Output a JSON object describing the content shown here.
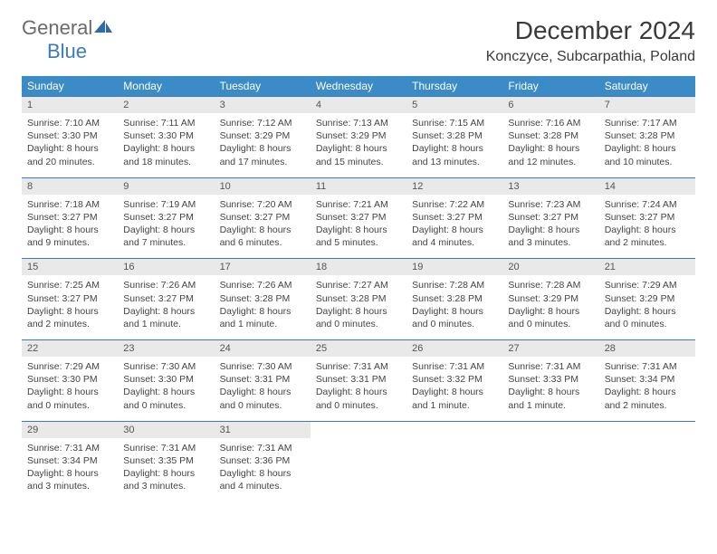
{
  "logo": {
    "general": "General",
    "blue": "Blue"
  },
  "title": "December 2024",
  "location": "Konczyce, Subcarpathia, Poland",
  "colors": {
    "header_bg": "#3b8bc7",
    "header_text": "#ffffff",
    "daynum_bg": "#e9e9e9",
    "border": "#3b7bbf",
    "logo_gray": "#6b6b6b",
    "logo_blue": "#3b7bbf"
  },
  "day_headers": [
    "Sunday",
    "Monday",
    "Tuesday",
    "Wednesday",
    "Thursday",
    "Friday",
    "Saturday"
  ],
  "weeks": [
    [
      {
        "num": "1",
        "sunrise": "Sunrise: 7:10 AM",
        "sunset": "Sunset: 3:30 PM",
        "day1": "Daylight: 8 hours",
        "day2": "and 20 minutes."
      },
      {
        "num": "2",
        "sunrise": "Sunrise: 7:11 AM",
        "sunset": "Sunset: 3:30 PM",
        "day1": "Daylight: 8 hours",
        "day2": "and 18 minutes."
      },
      {
        "num": "3",
        "sunrise": "Sunrise: 7:12 AM",
        "sunset": "Sunset: 3:29 PM",
        "day1": "Daylight: 8 hours",
        "day2": "and 17 minutes."
      },
      {
        "num": "4",
        "sunrise": "Sunrise: 7:13 AM",
        "sunset": "Sunset: 3:29 PM",
        "day1": "Daylight: 8 hours",
        "day2": "and 15 minutes."
      },
      {
        "num": "5",
        "sunrise": "Sunrise: 7:15 AM",
        "sunset": "Sunset: 3:28 PM",
        "day1": "Daylight: 8 hours",
        "day2": "and 13 minutes."
      },
      {
        "num": "6",
        "sunrise": "Sunrise: 7:16 AM",
        "sunset": "Sunset: 3:28 PM",
        "day1": "Daylight: 8 hours",
        "day2": "and 12 minutes."
      },
      {
        "num": "7",
        "sunrise": "Sunrise: 7:17 AM",
        "sunset": "Sunset: 3:28 PM",
        "day1": "Daylight: 8 hours",
        "day2": "and 10 minutes."
      }
    ],
    [
      {
        "num": "8",
        "sunrise": "Sunrise: 7:18 AM",
        "sunset": "Sunset: 3:27 PM",
        "day1": "Daylight: 8 hours",
        "day2": "and 9 minutes."
      },
      {
        "num": "9",
        "sunrise": "Sunrise: 7:19 AM",
        "sunset": "Sunset: 3:27 PM",
        "day1": "Daylight: 8 hours",
        "day2": "and 7 minutes."
      },
      {
        "num": "10",
        "sunrise": "Sunrise: 7:20 AM",
        "sunset": "Sunset: 3:27 PM",
        "day1": "Daylight: 8 hours",
        "day2": "and 6 minutes."
      },
      {
        "num": "11",
        "sunrise": "Sunrise: 7:21 AM",
        "sunset": "Sunset: 3:27 PM",
        "day1": "Daylight: 8 hours",
        "day2": "and 5 minutes."
      },
      {
        "num": "12",
        "sunrise": "Sunrise: 7:22 AM",
        "sunset": "Sunset: 3:27 PM",
        "day1": "Daylight: 8 hours",
        "day2": "and 4 minutes."
      },
      {
        "num": "13",
        "sunrise": "Sunrise: 7:23 AM",
        "sunset": "Sunset: 3:27 PM",
        "day1": "Daylight: 8 hours",
        "day2": "and 3 minutes."
      },
      {
        "num": "14",
        "sunrise": "Sunrise: 7:24 AM",
        "sunset": "Sunset: 3:27 PM",
        "day1": "Daylight: 8 hours",
        "day2": "and 2 minutes."
      }
    ],
    [
      {
        "num": "15",
        "sunrise": "Sunrise: 7:25 AM",
        "sunset": "Sunset: 3:27 PM",
        "day1": "Daylight: 8 hours",
        "day2": "and 2 minutes."
      },
      {
        "num": "16",
        "sunrise": "Sunrise: 7:26 AM",
        "sunset": "Sunset: 3:27 PM",
        "day1": "Daylight: 8 hours",
        "day2": "and 1 minute."
      },
      {
        "num": "17",
        "sunrise": "Sunrise: 7:26 AM",
        "sunset": "Sunset: 3:28 PM",
        "day1": "Daylight: 8 hours",
        "day2": "and 1 minute."
      },
      {
        "num": "18",
        "sunrise": "Sunrise: 7:27 AM",
        "sunset": "Sunset: 3:28 PM",
        "day1": "Daylight: 8 hours",
        "day2": "and 0 minutes."
      },
      {
        "num": "19",
        "sunrise": "Sunrise: 7:28 AM",
        "sunset": "Sunset: 3:28 PM",
        "day1": "Daylight: 8 hours",
        "day2": "and 0 minutes."
      },
      {
        "num": "20",
        "sunrise": "Sunrise: 7:28 AM",
        "sunset": "Sunset: 3:29 PM",
        "day1": "Daylight: 8 hours",
        "day2": "and 0 minutes."
      },
      {
        "num": "21",
        "sunrise": "Sunrise: 7:29 AM",
        "sunset": "Sunset: 3:29 PM",
        "day1": "Daylight: 8 hours",
        "day2": "and 0 minutes."
      }
    ],
    [
      {
        "num": "22",
        "sunrise": "Sunrise: 7:29 AM",
        "sunset": "Sunset: 3:30 PM",
        "day1": "Daylight: 8 hours",
        "day2": "and 0 minutes."
      },
      {
        "num": "23",
        "sunrise": "Sunrise: 7:30 AM",
        "sunset": "Sunset: 3:30 PM",
        "day1": "Daylight: 8 hours",
        "day2": "and 0 minutes."
      },
      {
        "num": "24",
        "sunrise": "Sunrise: 7:30 AM",
        "sunset": "Sunset: 3:31 PM",
        "day1": "Daylight: 8 hours",
        "day2": "and 0 minutes."
      },
      {
        "num": "25",
        "sunrise": "Sunrise: 7:31 AM",
        "sunset": "Sunset: 3:31 PM",
        "day1": "Daylight: 8 hours",
        "day2": "and 0 minutes."
      },
      {
        "num": "26",
        "sunrise": "Sunrise: 7:31 AM",
        "sunset": "Sunset: 3:32 PM",
        "day1": "Daylight: 8 hours",
        "day2": "and 1 minute."
      },
      {
        "num": "27",
        "sunrise": "Sunrise: 7:31 AM",
        "sunset": "Sunset: 3:33 PM",
        "day1": "Daylight: 8 hours",
        "day2": "and 1 minute."
      },
      {
        "num": "28",
        "sunrise": "Sunrise: 7:31 AM",
        "sunset": "Sunset: 3:34 PM",
        "day1": "Daylight: 8 hours",
        "day2": "and 2 minutes."
      }
    ],
    [
      {
        "num": "29",
        "sunrise": "Sunrise: 7:31 AM",
        "sunset": "Sunset: 3:34 PM",
        "day1": "Daylight: 8 hours",
        "day2": "and 3 minutes."
      },
      {
        "num": "30",
        "sunrise": "Sunrise: 7:31 AM",
        "sunset": "Sunset: 3:35 PM",
        "day1": "Daylight: 8 hours",
        "day2": "and 3 minutes."
      },
      {
        "num": "31",
        "sunrise": "Sunrise: 7:31 AM",
        "sunset": "Sunset: 3:36 PM",
        "day1": "Daylight: 8 hours",
        "day2": "and 4 minutes."
      },
      null,
      null,
      null,
      null
    ]
  ]
}
